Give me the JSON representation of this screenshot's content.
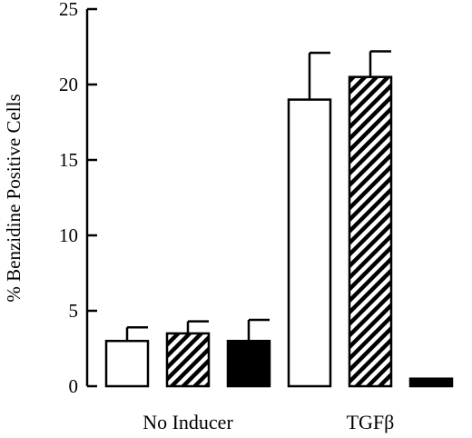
{
  "chart_data": {
    "type": "bar",
    "title": "",
    "xlabel": "",
    "ylabel": "% Benzidine Positive Cells",
    "ylim": [
      0,
      25
    ],
    "yticks": [
      0,
      5,
      10,
      15,
      20,
      25
    ],
    "grid": false,
    "legend": "none",
    "categories": [
      "No Inducer",
      "TGFβ"
    ],
    "series": [
      {
        "fill": "white",
        "values": [
          3.0,
          19.0
        ],
        "errors": [
          0.9,
          3.1
        ]
      },
      {
        "fill": "hatched",
        "values": [
          3.5,
          20.5
        ],
        "errors": [
          0.8,
          1.7
        ]
      },
      {
        "fill": "black",
        "values": [
          3.0,
          0.5
        ],
        "errors": [
          1.4,
          0.0
        ]
      }
    ]
  }
}
